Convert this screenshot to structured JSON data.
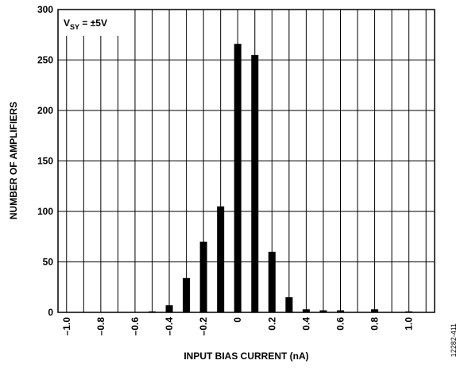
{
  "chart_data": {
    "type": "bar",
    "xlabel": "INPUT BIAS CURRENT (nA)",
    "ylabel": "NUMBER OF AMPLIFIERS",
    "xlim": [
      -1.05,
      1.15
    ],
    "ylim": [
      0,
      300
    ],
    "yticks": [
      0,
      50,
      100,
      150,
      200,
      250,
      300
    ],
    "xticks": [
      {
        "value": -1.0,
        "label": "–1.0"
      },
      {
        "value": -0.8,
        "label": "–0.8"
      },
      {
        "value": -0.6,
        "label": "–0.6"
      },
      {
        "value": -0.4,
        "label": "–0.4"
      },
      {
        "value": -0.2,
        "label": "–0.2"
      },
      {
        "value": 0,
        "label": "0"
      },
      {
        "value": 0.2,
        "label": "0.2"
      },
      {
        "value": 0.4,
        "label": "0.4"
      },
      {
        "value": 0.6,
        "label": "0.6"
      },
      {
        "value": 0.8,
        "label": "0.8"
      },
      {
        "value": 1.0,
        "label": "1.0"
      }
    ],
    "x": [
      -0.5,
      -0.4,
      -0.3,
      -0.2,
      -0.1,
      0.0,
      0.1,
      0.2,
      0.3,
      0.4,
      0.5,
      0.6,
      0.8,
      1.0
    ],
    "values": [
      1,
      7,
      34,
      70,
      105,
      266,
      255,
      60,
      15,
      3,
      2,
      2,
      3,
      1
    ],
    "grid": true,
    "bar_color": "#000000",
    "legend": {
      "base": "V",
      "subscript": "SY",
      "suffix": " = ±5V",
      "position": "top-left"
    },
    "figure_id": "12282-411"
  }
}
